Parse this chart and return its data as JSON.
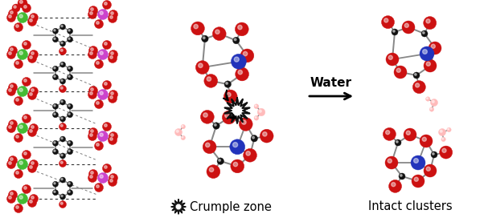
{
  "bg_color": "#ffffff",
  "text_color": "#000000",
  "font_size_labels": 10.5,
  "font_size_arrow": 11,
  "fig_width": 6.02,
  "fig_height": 2.77,
  "dpi": 100,
  "label_crumple": "Crumple zone",
  "label_intact": "Intact clusters",
  "label_water": "Water",
  "colors": {
    "red": "#cc1111",
    "black": "#111111",
    "blue": "#2233bb",
    "green": "#44bb33",
    "pink": "#ffbbbb",
    "purple": "#cc44cc",
    "gray": "#777777",
    "bond": "#888888",
    "white": "#ffffff"
  },
  "red_r": 8,
  "black_r": 4,
  "blue_r": 9,
  "green_r": 7,
  "purple_r": 7,
  "pink_r": 5,
  "pink_h_r": 3
}
